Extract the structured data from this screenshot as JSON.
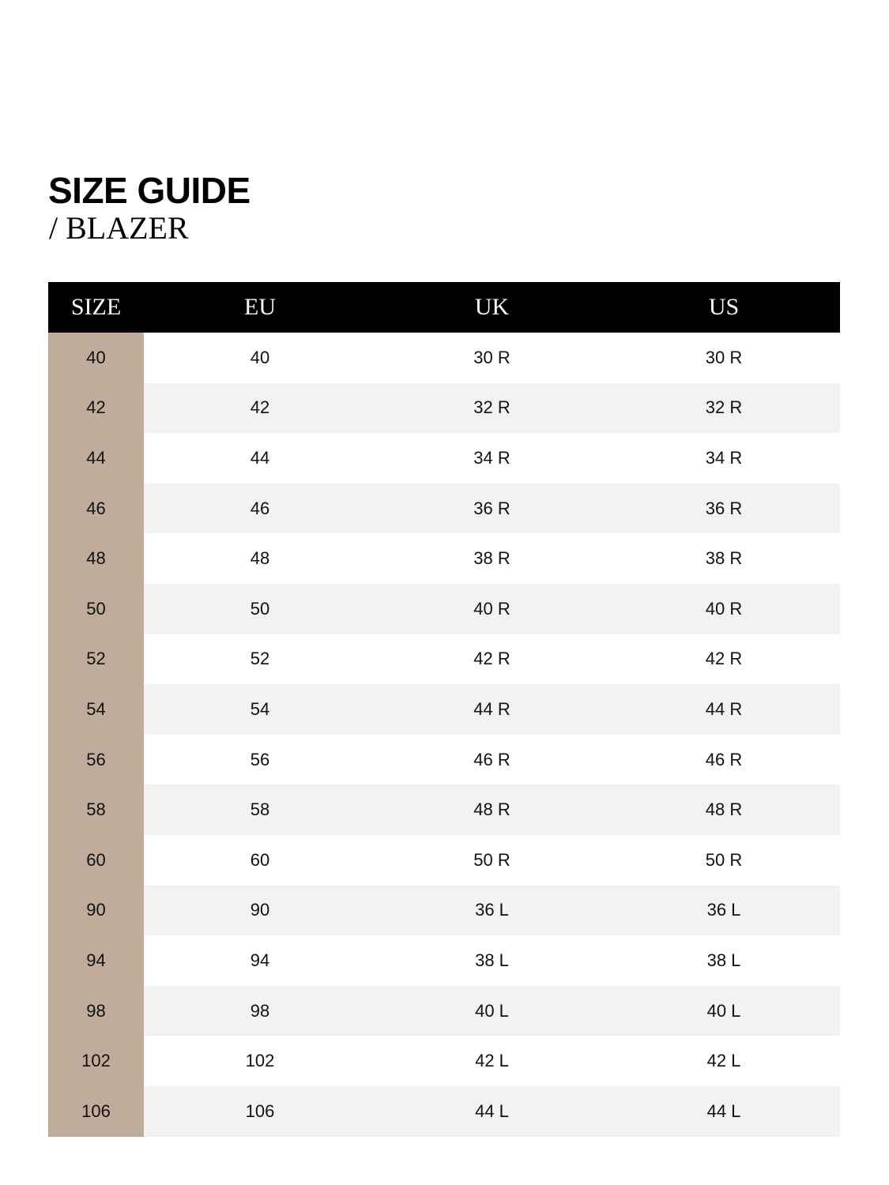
{
  "header": {
    "title": "SIZE GUIDE",
    "subtitle": "/ BLAZER"
  },
  "colors": {
    "header_bg": "#000000",
    "size_column": "#c0ac9b",
    "stripe": "#f2f2f2"
  },
  "table": {
    "columns": [
      "SIZE",
      "EU",
      "UK",
      "US"
    ],
    "rows": [
      [
        "40",
        "40",
        "30 R",
        "30 R"
      ],
      [
        "42",
        "42",
        "32 R",
        "32 R"
      ],
      [
        "44",
        "44",
        "34 R",
        "34 R"
      ],
      [
        "46",
        "46",
        "36 R",
        "36 R"
      ],
      [
        "48",
        "48",
        "38 R",
        "38 R"
      ],
      [
        "50",
        "50",
        "40 R",
        "40 R"
      ],
      [
        "52",
        "52",
        "42 R",
        "42 R"
      ],
      [
        "54",
        "54",
        "44 R",
        "44 R"
      ],
      [
        "56",
        "56",
        "46 R",
        "46 R"
      ],
      [
        "58",
        "58",
        "48 R",
        "48 R"
      ],
      [
        "60",
        "60",
        "50 R",
        "50 R"
      ],
      [
        "90",
        "90",
        "36 L",
        "36 L"
      ],
      [
        "94",
        "94",
        "38 L",
        "38 L"
      ],
      [
        "98",
        "98",
        "40 L",
        "40 L"
      ],
      [
        "102",
        "102",
        "42 L",
        "42 L"
      ],
      [
        "106",
        "106",
        "44 L",
        "44 L"
      ]
    ]
  }
}
